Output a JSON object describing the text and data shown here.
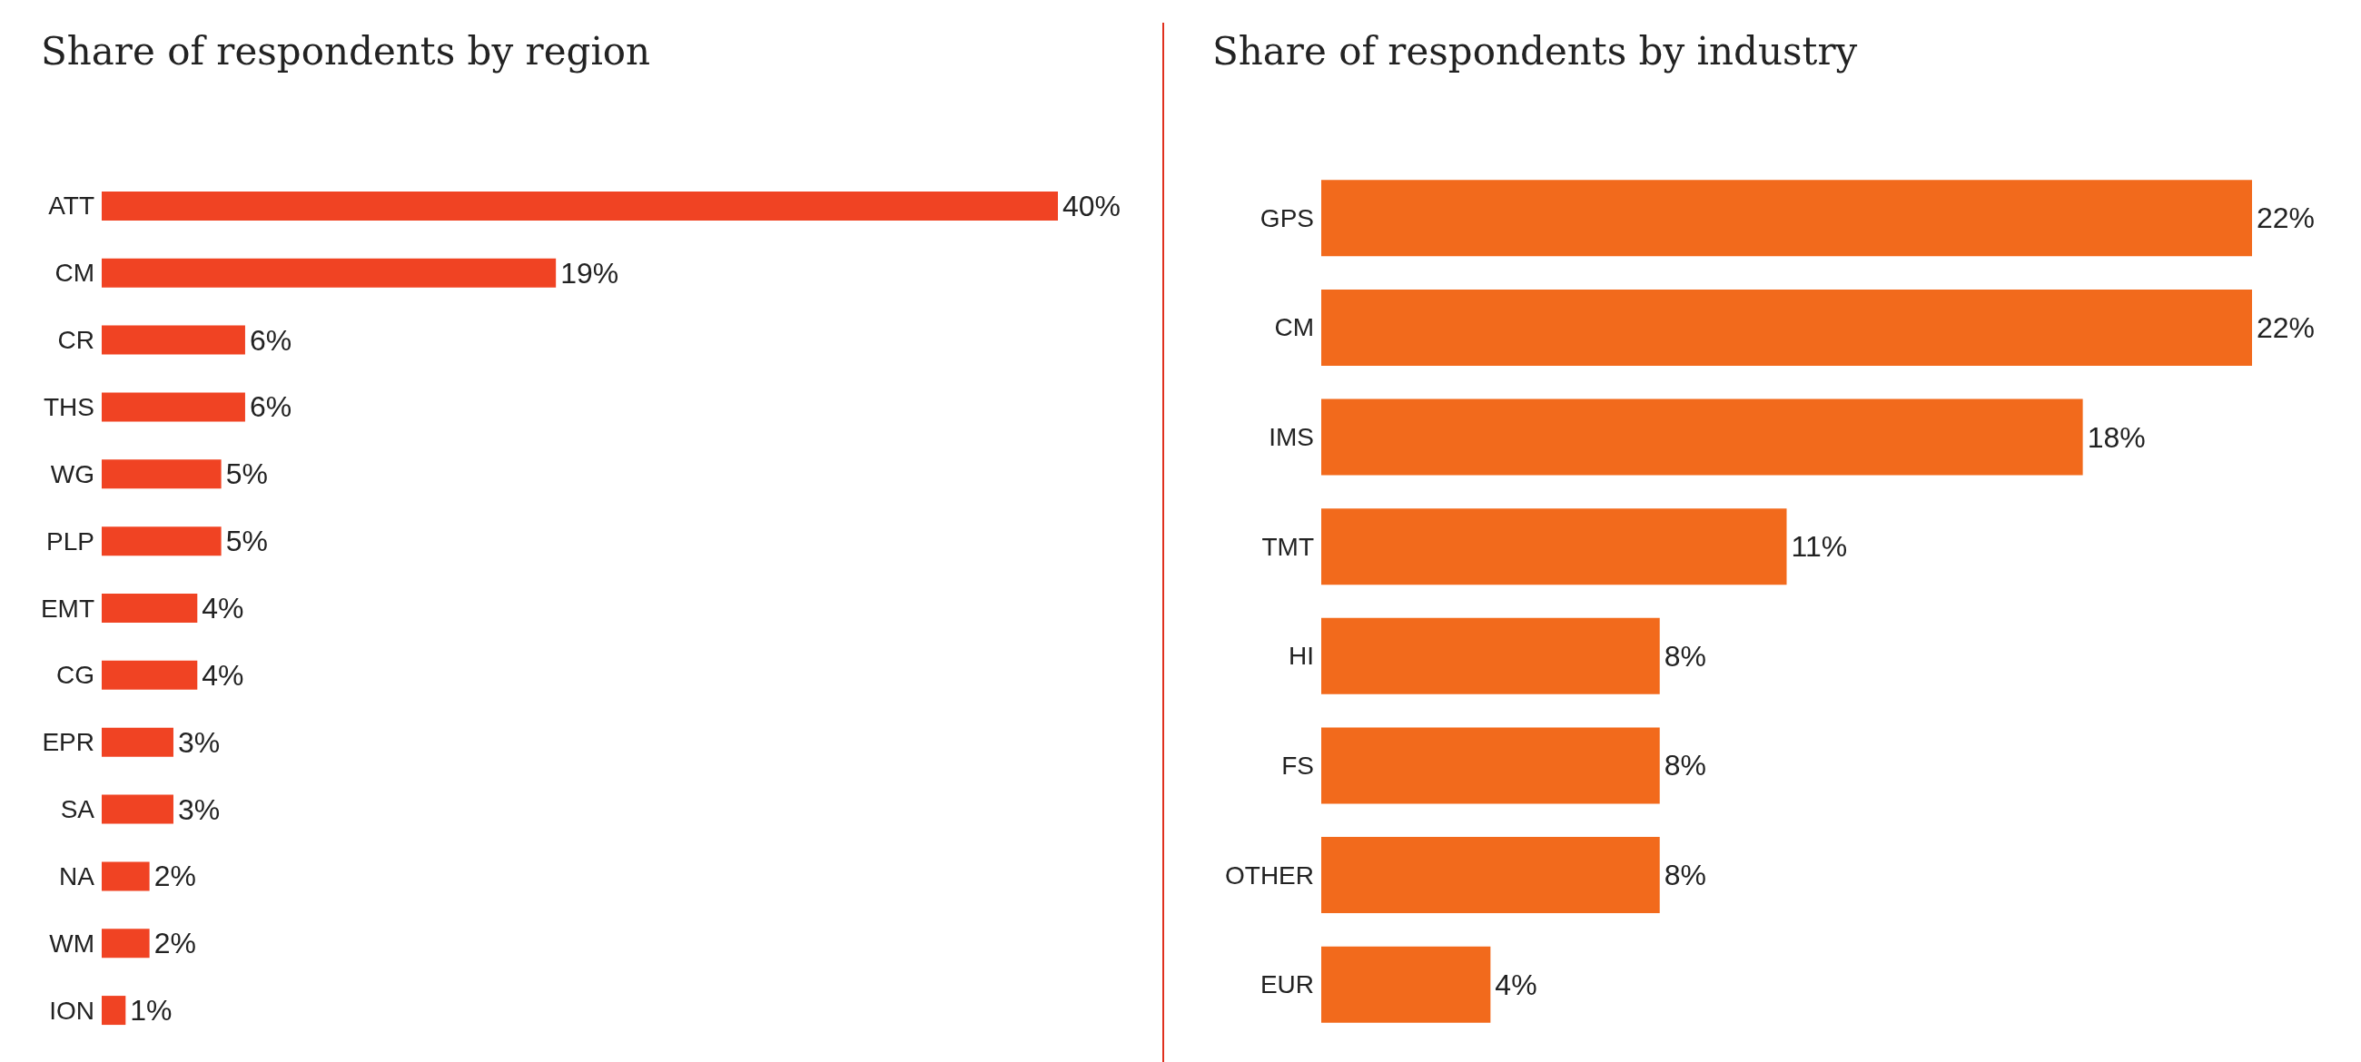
{
  "chart_data": [
    {
      "type": "bar",
      "orientation": "horizontal",
      "title": "Share of respondents by region",
      "categories": [
        "ATT",
        "CM",
        "CR",
        "THS",
        "WG",
        "PLP",
        "EMT",
        "CG",
        "EPR",
        "SA",
        "NA",
        "WM",
        "ION"
      ],
      "values": [
        40,
        19,
        6,
        6,
        5,
        5,
        4,
        4,
        3,
        3,
        2,
        2,
        1
      ],
      "value_labels": [
        "40%",
        "19%",
        "6%",
        "6%",
        "5%",
        "5%",
        "4%",
        "4%",
        "3%",
        "3%",
        "2%",
        "2%",
        "1%"
      ],
      "color": "#f04323",
      "tick_labels": "y"
    },
    {
      "type": "bar",
      "orientation": "horizontal",
      "title": "Share of respondents by industry",
      "categories": [
        "GPS",
        "CM",
        "IMS",
        "TMT",
        "HI",
        "FS",
        "OTHER",
        "EUR"
      ],
      "values": [
        22,
        22,
        18,
        11,
        8,
        8,
        8,
        4
      ],
      "value_labels": [
        "22%",
        "22%",
        "18%",
        "11%",
        "8%",
        "8%",
        "8%",
        "4%"
      ],
      "color": "#f26a1c",
      "tick_labels": "y"
    }
  ]
}
